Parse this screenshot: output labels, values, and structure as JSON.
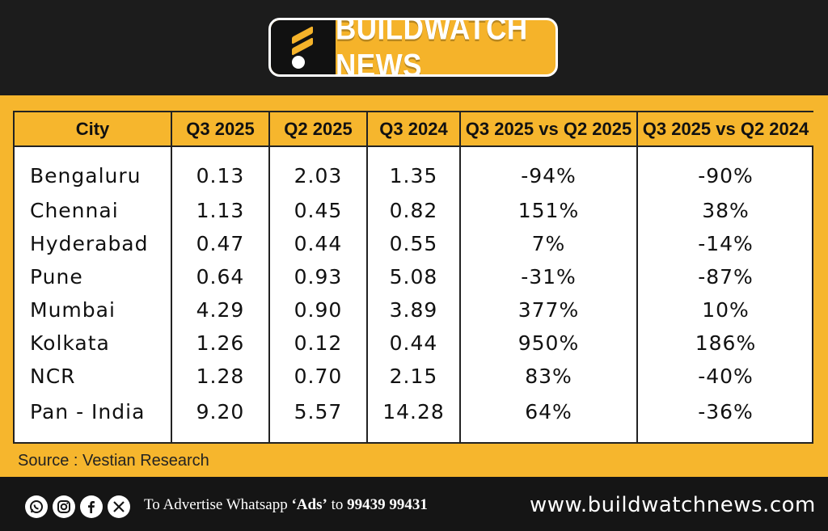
{
  "brand": {
    "name": "BUILDWATCH NEWS"
  },
  "table": {
    "headers": [
      "City",
      "Q3 2025",
      "Q2 2025",
      "Q3 2024",
      "Q3 2025 vs Q2 2025",
      "Q3 2025 vs Q2 2024"
    ],
    "rows": [
      [
        "Bengaluru",
        "0.13",
        "2.03",
        "1.35",
        "-94%",
        "-90%"
      ],
      [
        "Chennai",
        "1.13",
        "0.45",
        "0.82",
        "151%",
        "38%"
      ],
      [
        "Hyderabad",
        "0.47",
        "0.44",
        "0.55",
        "7%",
        "-14%"
      ],
      [
        "Pune",
        "0.64",
        "0.93",
        "5.08",
        "-31%",
        "-87%"
      ],
      [
        "Mumbai",
        "4.29",
        "0.90",
        "3.89",
        "377%",
        "10%"
      ],
      [
        "Kolkata",
        "1.26",
        "0.12",
        "0.44",
        "950%",
        "186%"
      ],
      [
        "NCR",
        "1.28",
        "0.70",
        "2.15",
        "83%",
        "-40%"
      ],
      [
        "Pan - India",
        "9.20",
        "5.57",
        "14.28",
        "64%",
        "-36%"
      ]
    ]
  },
  "source": "Source : Vestian Research",
  "footer": {
    "social_icons": [
      "whatsapp-icon",
      "instagram-icon",
      "facebook-icon",
      "x-icon"
    ],
    "ad_prefix": "To Advertise Whatsapp",
    "ad_keyword": "‘Ads’",
    "ad_to": "to",
    "ad_number": "99439 99431",
    "website": "www.buildwatchnews.com"
  },
  "colors": {
    "accent": "#f6b62d",
    "dark": "#1c1c1c",
    "white": "#ffffff"
  }
}
